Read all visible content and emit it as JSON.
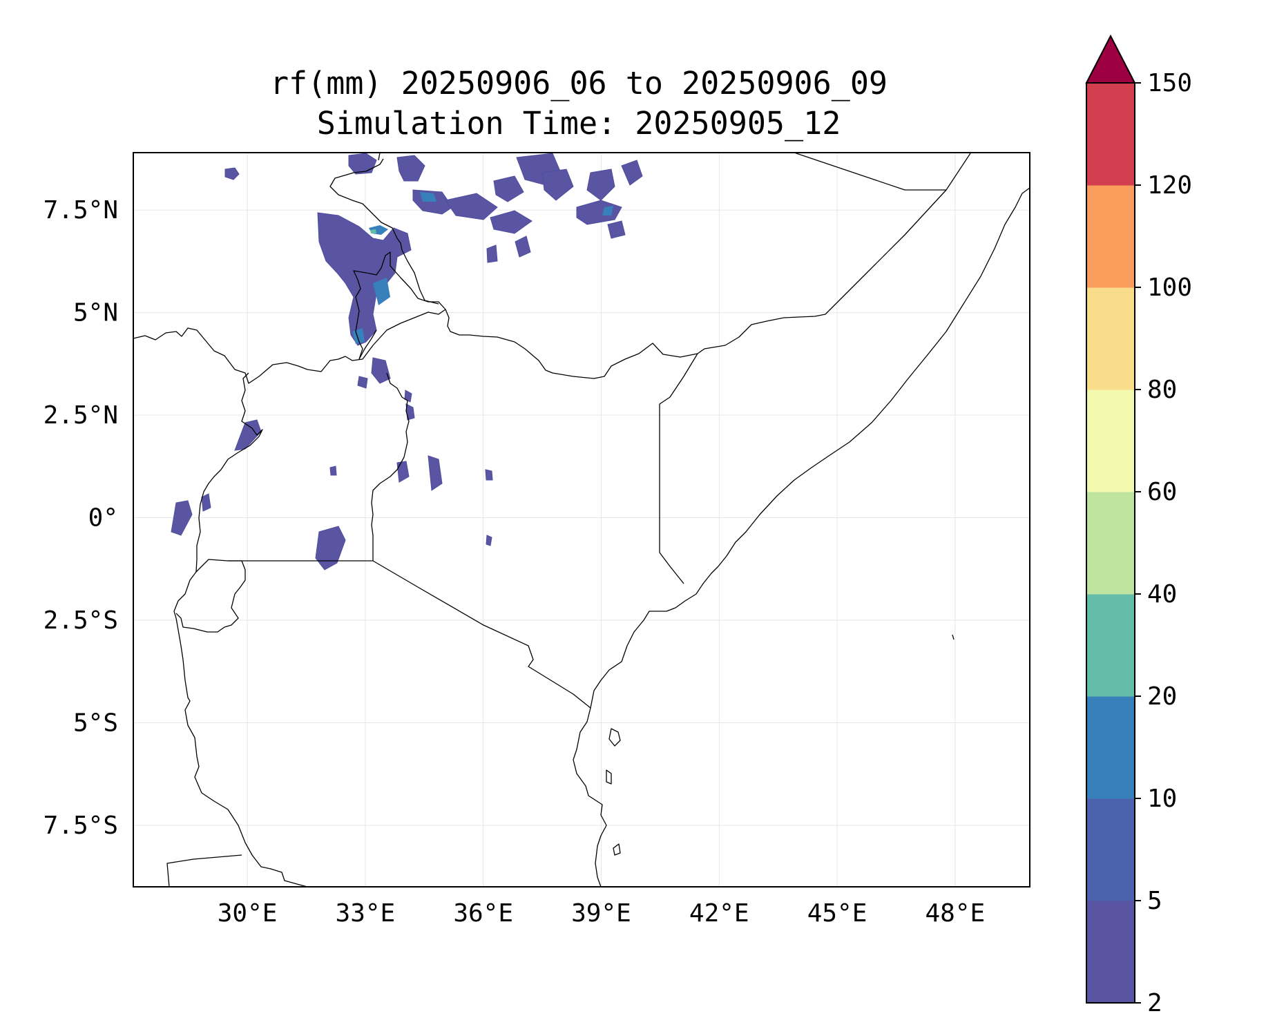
{
  "title": {
    "line1": "rf(mm) 20250906_06 to 20250906_09",
    "line2": "Simulation Time: 20250905_12"
  },
  "map": {
    "lon_range": [
      27.1,
      49.9
    ],
    "lat_range": [
      -9.0,
      8.9
    ],
    "x_ticks": [
      {
        "lon": 30,
        "label": "30°E"
      },
      {
        "lon": 33,
        "label": "33°E"
      },
      {
        "lon": 36,
        "label": "36°E"
      },
      {
        "lon": 39,
        "label": "39°E"
      },
      {
        "lon": 42,
        "label": "42°E"
      },
      {
        "lon": 45,
        "label": "45°E"
      },
      {
        "lon": 48,
        "label": "48°E"
      }
    ],
    "y_ticks": [
      {
        "lat": 7.5,
        "label": "7.5°N"
      },
      {
        "lat": 5,
        "label": "5°N"
      },
      {
        "lat": 2.5,
        "label": "2.5°N"
      },
      {
        "lat": 0,
        "label": "0°"
      },
      {
        "lat": -2.5,
        "label": "2.5°S"
      },
      {
        "lat": -5,
        "label": "5°S"
      },
      {
        "lat": -7.5,
        "label": "7.5°S"
      }
    ]
  },
  "colorbar": {
    "levels": [
      "2",
      "5",
      "10",
      "20",
      "40",
      "60",
      "80",
      "100",
      "120",
      "150"
    ],
    "colors": [
      "#5a55a2",
      "#4b63ad",
      "#3880bc",
      "#63bda9",
      "#bee4a0",
      "#f3f9ae",
      "#fadd8b",
      "#f99c5c",
      "#d33e4e",
      "#9e0142"
    ],
    "extend": "max"
  }
}
